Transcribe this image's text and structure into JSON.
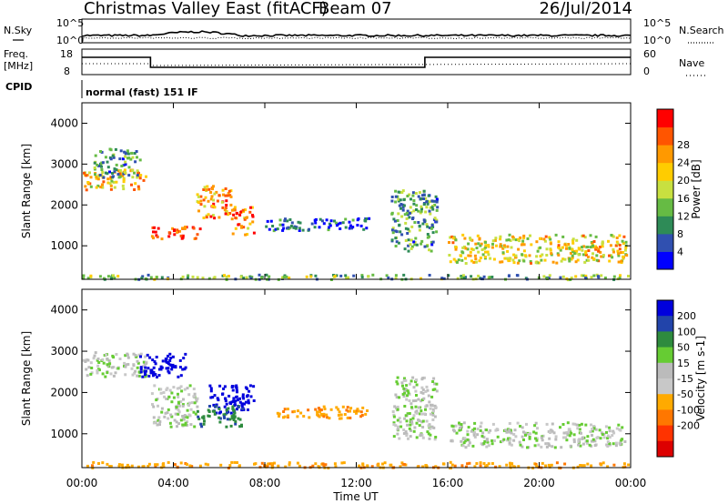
{
  "header": {
    "station": "Christmas Valley East (fitACF)",
    "beam": "Beam 07",
    "date": "26/Jul/2014"
  },
  "summary": {
    "nsky_label": "N.Sky",
    "nsearch_label": "N.Search",
    "noise_ticks": [
      "10^5",
      "10^0"
    ],
    "freq_label_1": "Freq.",
    "freq_label_2": "[MHz]",
    "freq_ticks": [
      "18",
      "8"
    ],
    "nave_label": "Nave",
    "nave_ticks": [
      "60",
      "0"
    ],
    "cpid_label": "CPID",
    "cpid_value": "normal (fast) 151 IF"
  },
  "colors": {
    "power_scale": [
      "#0000ff",
      "#3050b0",
      "#2e8b57",
      "#66bb44",
      "#c8e040",
      "#ffcc00",
      "#ff9900",
      "#ff5500",
      "#ff0000"
    ],
    "velocity_scale": [
      "#0000dd",
      "#2244aa",
      "#2e8b3e",
      "#66cc33",
      "#bbbbbb",
      "#c8c8c8",
      "#ffaa00",
      "#ff7700",
      "#ff3300",
      "#dd0000"
    ]
  },
  "chart_data": [
    {
      "type": "heatmap",
      "panel": "power",
      "xlabel": "",
      "ylabel": "Slant Range [km]",
      "xlim": [
        0,
        24
      ],
      "ylim": [
        180,
        4500
      ],
      "y_ticks": [
        "1000",
        "2000",
        "3000",
        "4000"
      ],
      "colorbar_label": "Power [dB]",
      "colorbar_ticks": [
        "4",
        "8",
        "12",
        "16",
        "20",
        "24",
        "28"
      ],
      "features": [
        {
          "t_start": 0.0,
          "t_end": 2.8,
          "range_start": 2400,
          "range_end": 2900,
          "value": 20
        },
        {
          "t_start": 0.5,
          "t_end": 2.5,
          "range_start": 2700,
          "range_end": 3400,
          "value": 10
        },
        {
          "t_start": 3.0,
          "t_end": 5.2,
          "range_start": 1200,
          "range_end": 1500,
          "value": 28
        },
        {
          "t_start": 5.0,
          "t_end": 6.5,
          "range_start": 1700,
          "range_end": 2500,
          "value": 22
        },
        {
          "t_start": 6.5,
          "t_end": 7.5,
          "range_start": 1300,
          "range_end": 2000,
          "value": 24
        },
        {
          "t_start": 8.0,
          "t_end": 12.5,
          "range_start": 1400,
          "range_end": 1700,
          "value": 6
        },
        {
          "t_start": 13.5,
          "t_end": 15.5,
          "range_start": 900,
          "range_end": 2400,
          "value": 10
        },
        {
          "t_start": 16.0,
          "t_end": 23.8,
          "range_start": 600,
          "range_end": 1300,
          "value": 18
        },
        {
          "t_start": 0.0,
          "t_end": 24.0,
          "range_start": 200,
          "range_end": 320,
          "value": 12
        }
      ]
    },
    {
      "type": "heatmap",
      "panel": "velocity",
      "xlabel": "Time UT",
      "ylabel": "Slant Range [km]",
      "xlim": [
        0,
        24
      ],
      "ylim": [
        180,
        4500
      ],
      "x_ticks": [
        "00:00",
        "04:00",
        "08:00",
        "12:00",
        "16:00",
        "20:00",
        "00:00"
      ],
      "y_ticks": [
        "1000",
        "2000",
        "3000",
        "4000"
      ],
      "colorbar_label": "Velocity [m s-1]",
      "colorbar_ticks": [
        "200",
        "100",
        "50",
        "15",
        "-15",
        "-50",
        "-100",
        "-200"
      ],
      "features": [
        {
          "t_start": 0.0,
          "t_end": 2.8,
          "range_start": 2400,
          "range_end": 3000,
          "value": 0
        },
        {
          "t_start": 2.5,
          "t_end": 4.5,
          "range_start": 2400,
          "range_end": 3000,
          "value": 200
        },
        {
          "t_start": 3.0,
          "t_end": 5.0,
          "range_start": 1200,
          "range_end": 2200,
          "value": 0
        },
        {
          "t_start": 5.5,
          "t_end": 7.5,
          "range_start": 1500,
          "range_end": 2200,
          "value": 250
        },
        {
          "t_start": 5.0,
          "t_end": 7.0,
          "range_start": 1200,
          "range_end": 1700,
          "value": 60
        },
        {
          "t_start": 8.5,
          "t_end": 12.5,
          "range_start": 1400,
          "range_end": 1700,
          "value": -60
        },
        {
          "t_start": 13.5,
          "t_end": 15.5,
          "range_start": 900,
          "range_end": 2400,
          "value": 0
        },
        {
          "t_start": 16.0,
          "t_end": 23.8,
          "range_start": 700,
          "range_end": 1300,
          "value": 0
        },
        {
          "t_start": 0.0,
          "t_end": 24.0,
          "range_start": 200,
          "range_end": 340,
          "value": -60
        }
      ]
    }
  ]
}
